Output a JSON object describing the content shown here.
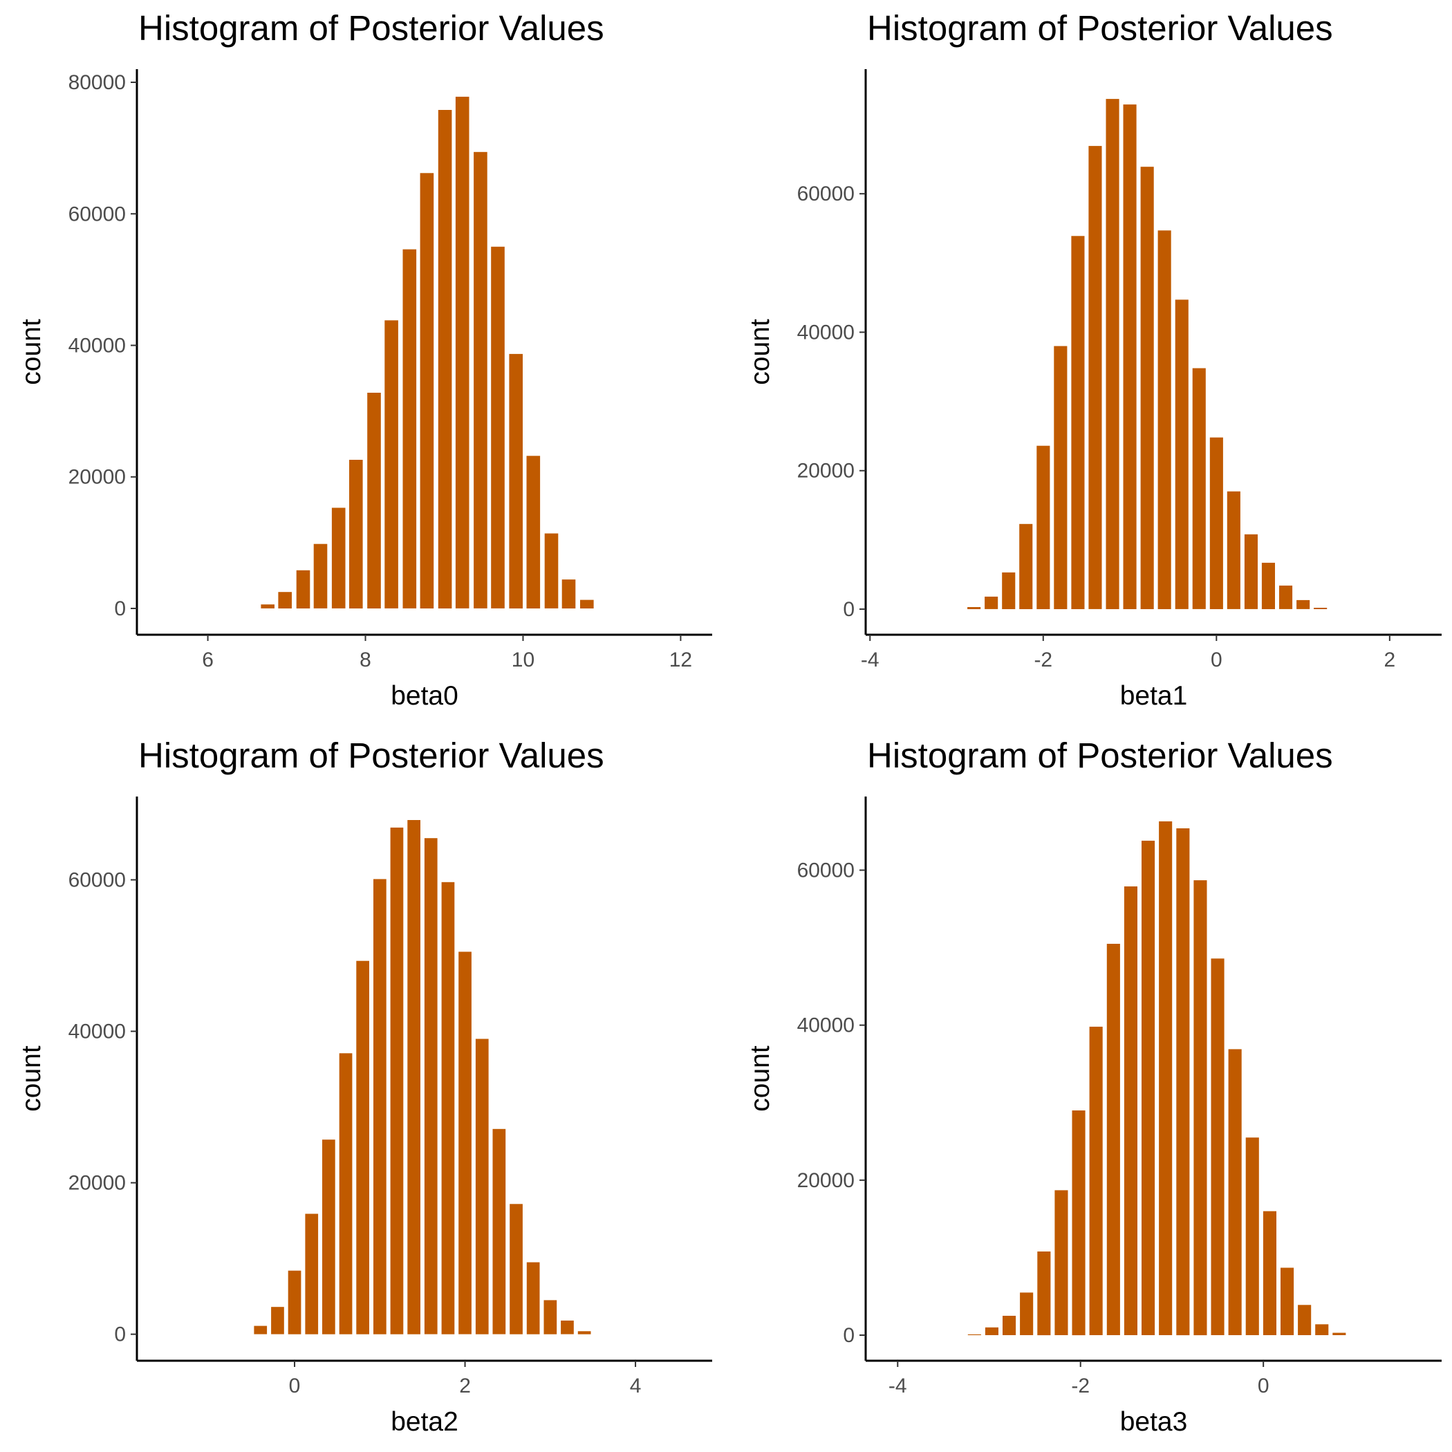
{
  "colors": {
    "bar": "#c05a00",
    "axis": "#000000",
    "tick_text": "#4d4d4d",
    "background": "#ffffff"
  },
  "chart_data": [
    {
      "type": "bar",
      "title": "Histogram of Posterior Values",
      "xlabel": "beta0",
      "ylabel": "count",
      "xlim": [
        5.1,
        12.4
      ],
      "ylim": [
        -4000,
        82000
      ],
      "xticks": [
        6,
        8,
        10,
        12
      ],
      "yticks": [
        0,
        20000,
        40000,
        60000,
        80000
      ],
      "bin_width": 0.225,
      "x": [
        6.76,
        6.98,
        7.21,
        7.43,
        7.66,
        7.88,
        8.11,
        8.33,
        8.56,
        8.78,
        9.01,
        9.23,
        9.46,
        9.68,
        9.91,
        10.13,
        10.36,
        10.58,
        10.81
      ],
      "values": [
        600,
        2500,
        5800,
        9800,
        15300,
        22600,
        32800,
        43800,
        54600,
        66200,
        75800,
        77800,
        69400,
        55000,
        38700,
        23200,
        11400,
        4400,
        1300
      ],
      "grid": false
    },
    {
      "type": "bar",
      "title": "Histogram of Posterior Values",
      "xlabel": "beta1",
      "ylabel": "count",
      "xlim": [
        -4.05,
        2.6
      ],
      "ylim": [
        -3700,
        78000
      ],
      "xticks": [
        -4,
        -2,
        0,
        2
      ],
      "yticks": [
        0,
        20000,
        40000,
        60000
      ],
      "bin_width": 0.2,
      "x": [
        -2.8,
        -2.6,
        -2.4,
        -2.2,
        -2.0,
        -1.8,
        -1.6,
        -1.4,
        -1.2,
        -1.0,
        -0.8,
        -0.6,
        -0.4,
        -0.2,
        0.0,
        0.2,
        0.4,
        0.6,
        0.8,
        1.0,
        1.2
      ],
      "values": [
        300,
        1800,
        5300,
        12300,
        23600,
        38000,
        53900,
        66900,
        73700,
        72900,
        63900,
        54700,
        44700,
        34800,
        24800,
        17000,
        10800,
        6700,
        3400,
        1300,
        200
      ],
      "grid": false
    },
    {
      "type": "bar",
      "title": "Histogram of Posterior Values",
      "xlabel": "beta2",
      "ylabel": "count",
      "xlim": [
        -1.85,
        4.9
      ],
      "ylim": [
        -3500,
        71000
      ],
      "xticks": [
        0,
        2,
        4
      ],
      "yticks": [
        0,
        20000,
        40000,
        60000
      ],
      "bin_width": 0.2,
      "x": [
        -0.4,
        -0.2,
        0.0,
        0.2,
        0.4,
        0.6,
        0.8,
        1.0,
        1.2,
        1.4,
        1.6,
        1.8,
        2.0,
        2.2,
        2.4,
        2.6,
        2.8,
        3.0,
        3.2,
        3.4
      ],
      "values": [
        1100,
        3600,
        8400,
        15900,
        25700,
        37100,
        49300,
        60100,
        66900,
        67900,
        65500,
        59700,
        50500,
        39000,
        27100,
        17200,
        9500,
        4500,
        1800,
        400
      ],
      "grid": false
    },
    {
      "type": "bar",
      "title": "Histogram of Posterior Values",
      "xlabel": "beta3",
      "ylabel": "count",
      "xlim": [
        -4.35,
        1.95
      ],
      "ylim": [
        -3300,
        69500
      ],
      "xticks": [
        -4,
        -2,
        0
      ],
      "yticks": [
        0,
        20000,
        40000,
        60000
      ],
      "bin_width": 0.19,
      "x": [
        -3.16,
        -2.97,
        -2.78,
        -2.59,
        -2.4,
        -2.21,
        -2.02,
        -1.83,
        -1.64,
        -1.45,
        -1.26,
        -1.07,
        -0.88,
        -0.69,
        -0.5,
        -0.31,
        -0.12,
        0.07,
        0.26,
        0.45,
        0.64,
        0.83
      ],
      "values": [
        100,
        1000,
        2500,
        5500,
        10800,
        18700,
        29000,
        39800,
        50500,
        57900,
        63800,
        66300,
        65400,
        58700,
        48600,
        36900,
        25500,
        16000,
        8700,
        3900,
        1400,
        300
      ],
      "grid": false
    }
  ]
}
